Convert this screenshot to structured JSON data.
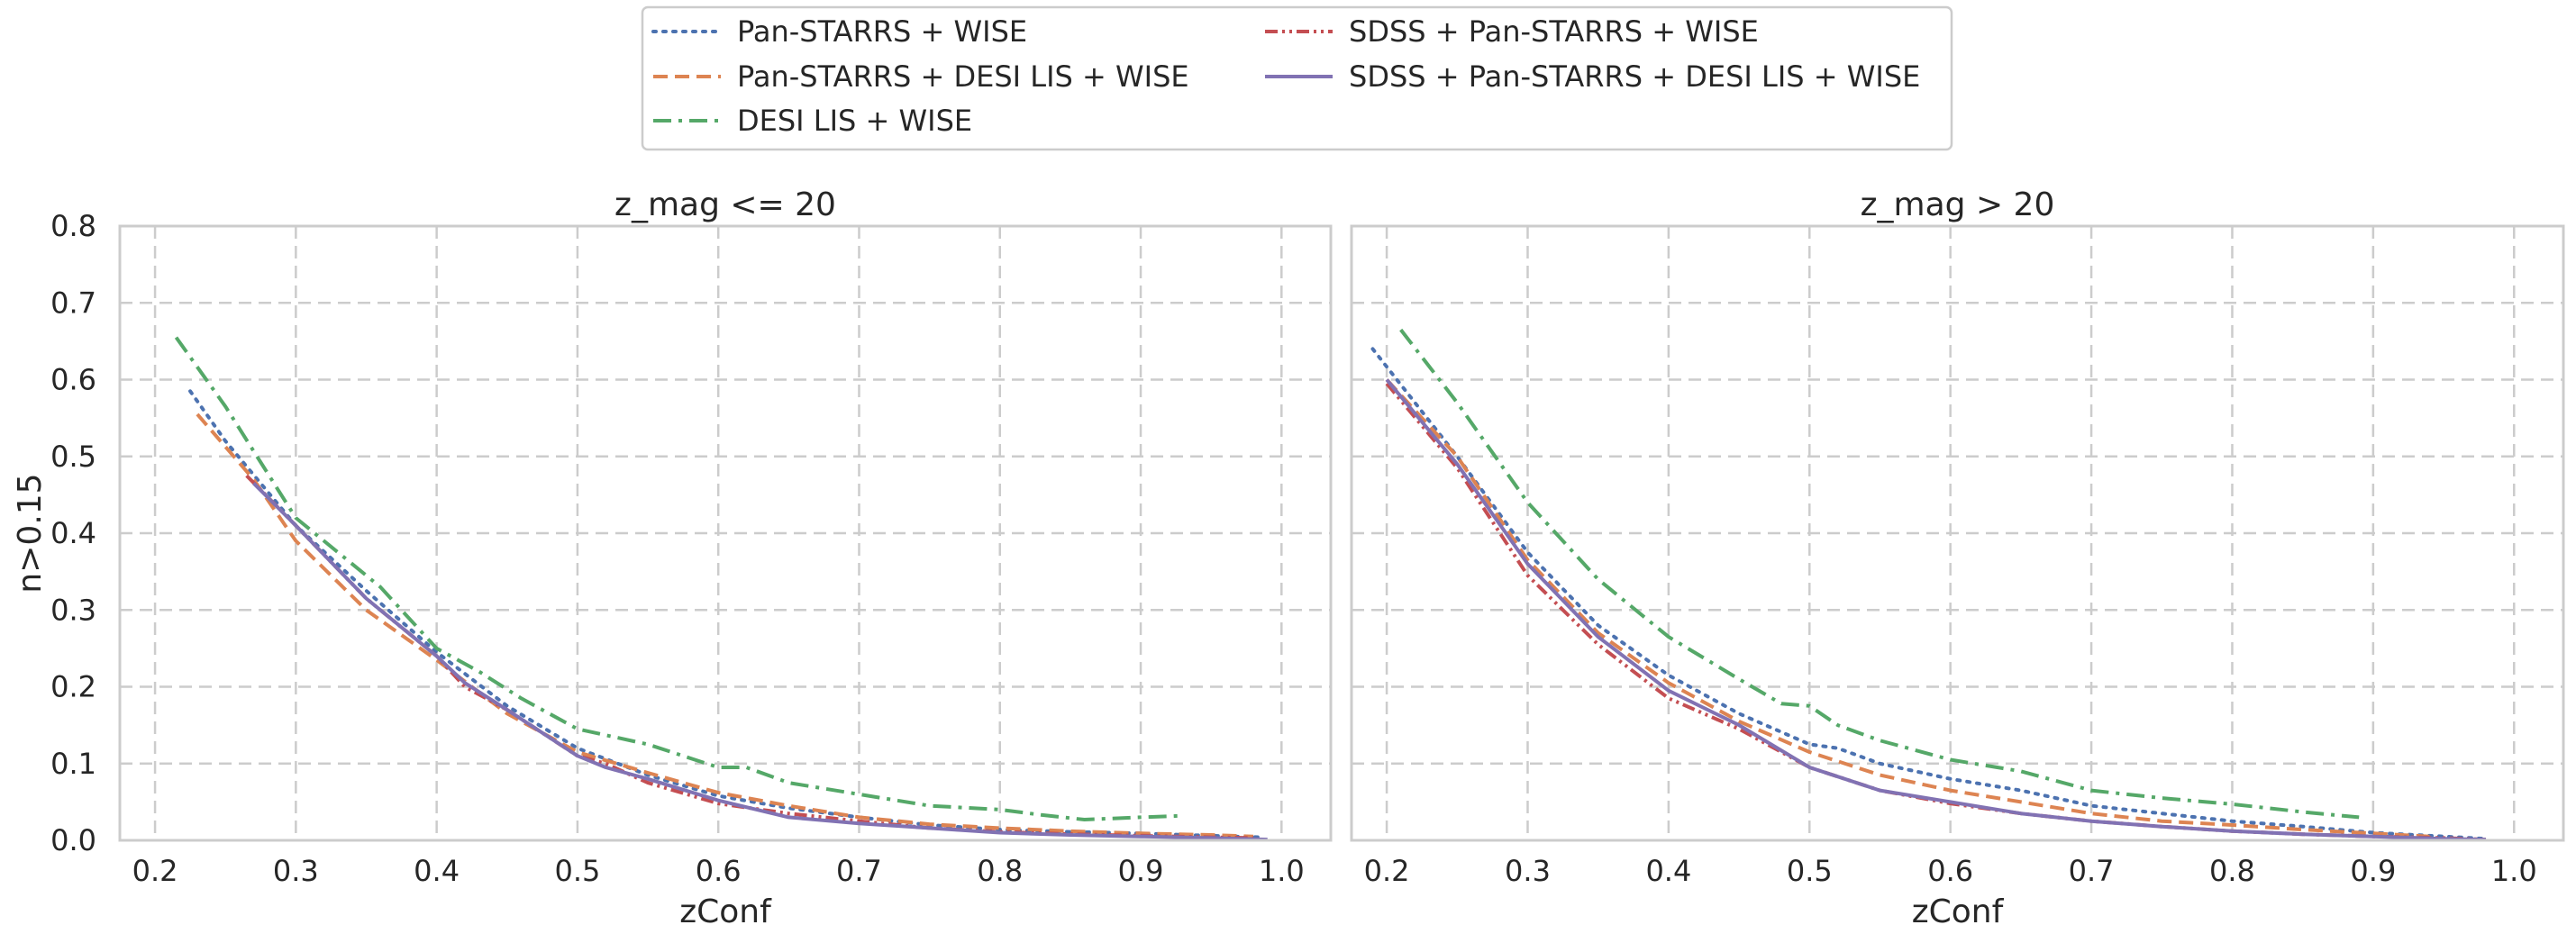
{
  "chart_data": [
    {
      "type": "line",
      "title": "z_mag <= 20",
      "xlabel": "zConf",
      "ylabel": "n>0.15",
      "xlim": [
        0.175,
        1.035
      ],
      "ylim": [
        0.0,
        0.8
      ],
      "xticks": [
        "0.2",
        "0.3",
        "0.4",
        "0.5",
        "0.6",
        "0.7",
        "0.8",
        "0.9",
        "1.0"
      ],
      "yticks": [
        "0.0",
        "0.1",
        "0.2",
        "0.3",
        "0.4",
        "0.5",
        "0.6",
        "0.7",
        "0.8"
      ],
      "grid": true,
      "series": [
        {
          "name": "Pan-STARRS + WISE",
          "color": "#4c72b0",
          "style": "dotted",
          "x": [
            0.225,
            0.25,
            0.3,
            0.35,
            0.4,
            0.45,
            0.5,
            0.55,
            0.6,
            0.65,
            0.7,
            0.75,
            0.8,
            0.85,
            0.9,
            0.95,
            0.985
          ],
          "y": [
            0.585,
            0.52,
            0.41,
            0.325,
            0.245,
            0.175,
            0.12,
            0.085,
            0.058,
            0.042,
            0.03,
            0.02,
            0.014,
            0.011,
            0.009,
            0.006,
            0.004
          ]
        },
        {
          "name": "Pan-STARRS + DESI LIS + WISE",
          "color": "#dd8452",
          "style": "dashed",
          "x": [
            0.23,
            0.27,
            0.3,
            0.35,
            0.4,
            0.45,
            0.5,
            0.55,
            0.6,
            0.65,
            0.7,
            0.75,
            0.8,
            0.85,
            0.9,
            0.95,
            0.98
          ],
          "y": [
            0.555,
            0.47,
            0.39,
            0.3,
            0.235,
            0.165,
            0.115,
            0.088,
            0.062,
            0.045,
            0.03,
            0.021,
            0.016,
            0.012,
            0.009,
            0.007,
            0.005
          ]
        },
        {
          "name": "DESI LIS + WISE",
          "color": "#55a868",
          "style": "dashdot",
          "x": [
            0.215,
            0.25,
            0.3,
            0.36,
            0.4,
            0.43,
            0.46,
            0.5,
            0.55,
            0.6,
            0.62,
            0.65,
            0.7,
            0.75,
            0.8,
            0.83,
            0.86,
            0.9,
            0.93
          ],
          "y": [
            0.655,
            0.565,
            0.42,
            0.33,
            0.25,
            0.22,
            0.185,
            0.145,
            0.125,
            0.095,
            0.095,
            0.075,
            0.06,
            0.045,
            0.04,
            0.033,
            0.027,
            0.03,
            0.032
          ]
        },
        {
          "name": "SDSS + Pan-STARRS + WISE",
          "color": "#c44e52",
          "style": "dashdotdot",
          "x": [
            0.265,
            0.3,
            0.35,
            0.4,
            0.42,
            0.45,
            0.5,
            0.52,
            0.55,
            0.6,
            0.65,
            0.7,
            0.75,
            0.8,
            0.85,
            0.9,
            0.95,
            0.98
          ],
          "y": [
            0.475,
            0.41,
            0.315,
            0.24,
            0.2,
            0.17,
            0.11,
            0.1,
            0.075,
            0.048,
            0.035,
            0.025,
            0.016,
            0.011,
            0.008,
            0.006,
            0.004,
            0.003
          ]
        },
        {
          "name": "SDSS + Pan-STARRS + DESI LIS + WISE",
          "color": "#8172b3",
          "style": "solid",
          "x": [
            0.27,
            0.3,
            0.35,
            0.4,
            0.42,
            0.45,
            0.5,
            0.52,
            0.55,
            0.6,
            0.65,
            0.7,
            0.75,
            0.8,
            0.85,
            0.9,
            0.95,
            0.99
          ],
          "y": [
            0.465,
            0.41,
            0.315,
            0.24,
            0.205,
            0.17,
            0.11,
            0.095,
            0.08,
            0.052,
            0.03,
            0.022,
            0.016,
            0.01,
            0.007,
            0.005,
            0.003,
            0.001
          ]
        }
      ]
    },
    {
      "type": "line",
      "title": "z_mag > 20",
      "xlabel": "zConf",
      "ylabel": "",
      "xlim": [
        0.175,
        1.035
      ],
      "ylim": [
        0.0,
        0.8
      ],
      "xticks": [
        "0.2",
        "0.3",
        "0.4",
        "0.5",
        "0.6",
        "0.7",
        "0.8",
        "0.9",
        "1.0"
      ],
      "yticks": [],
      "grid": true,
      "series": [
        {
          "name": "Pan-STARRS + WISE",
          "color": "#4c72b0",
          "style": "dotted",
          "x": [
            0.19,
            0.22,
            0.25,
            0.3,
            0.35,
            0.4,
            0.45,
            0.5,
            0.52,
            0.55,
            0.6,
            0.65,
            0.7,
            0.75,
            0.8,
            0.85,
            0.9,
            0.95,
            0.98
          ],
          "y": [
            0.64,
            0.57,
            0.5,
            0.375,
            0.28,
            0.215,
            0.165,
            0.125,
            0.12,
            0.1,
            0.08,
            0.065,
            0.045,
            0.035,
            0.025,
            0.018,
            0.01,
            0.005,
            0.002
          ]
        },
        {
          "name": "Pan-STARRS + DESI LIS + WISE",
          "color": "#dd8452",
          "style": "dashed",
          "x": [
            0.2,
            0.25,
            0.3,
            0.35,
            0.4,
            0.45,
            0.5,
            0.55,
            0.6,
            0.65,
            0.7,
            0.75,
            0.8,
            0.85,
            0.9,
            0.94
          ],
          "y": [
            0.6,
            0.5,
            0.365,
            0.27,
            0.205,
            0.155,
            0.115,
            0.085,
            0.065,
            0.05,
            0.035,
            0.025,
            0.02,
            0.014,
            0.009,
            0.005
          ]
        },
        {
          "name": "DESI LIS + WISE",
          "color": "#55a868",
          "style": "dashdot",
          "x": [
            0.21,
            0.25,
            0.3,
            0.35,
            0.4,
            0.45,
            0.48,
            0.5,
            0.52,
            0.55,
            0.6,
            0.65,
            0.7,
            0.75,
            0.8,
            0.85,
            0.89
          ],
          "y": [
            0.665,
            0.57,
            0.44,
            0.34,
            0.265,
            0.21,
            0.178,
            0.175,
            0.15,
            0.13,
            0.105,
            0.09,
            0.065,
            0.055,
            0.047,
            0.037,
            0.03
          ]
        },
        {
          "name": "SDSS + Pan-STARRS + WISE",
          "color": "#c44e52",
          "style": "dashdotdot",
          "x": [
            0.2,
            0.25,
            0.3,
            0.35,
            0.4,
            0.45,
            0.5,
            0.55,
            0.6,
            0.65,
            0.7,
            0.75,
            0.8,
            0.85,
            0.9,
            0.95,
            0.98
          ],
          "y": [
            0.595,
            0.485,
            0.345,
            0.255,
            0.185,
            0.145,
            0.095,
            0.065,
            0.048,
            0.035,
            0.025,
            0.018,
            0.012,
            0.008,
            0.005,
            0.003,
            0.001
          ]
        },
        {
          "name": "SDSS + Pan-STARRS + DESI LIS + WISE",
          "color": "#8172b3",
          "style": "solid",
          "x": [
            0.2,
            0.25,
            0.3,
            0.35,
            0.4,
            0.45,
            0.5,
            0.55,
            0.6,
            0.65,
            0.7,
            0.75,
            0.8,
            0.85,
            0.9,
            0.95,
            0.98
          ],
          "y": [
            0.6,
            0.49,
            0.36,
            0.265,
            0.195,
            0.15,
            0.095,
            0.065,
            0.05,
            0.035,
            0.025,
            0.018,
            0.012,
            0.008,
            0.005,
            0.002,
            0.001
          ]
        }
      ]
    }
  ],
  "legend": {
    "placement": "top-center",
    "columns": 2
  }
}
